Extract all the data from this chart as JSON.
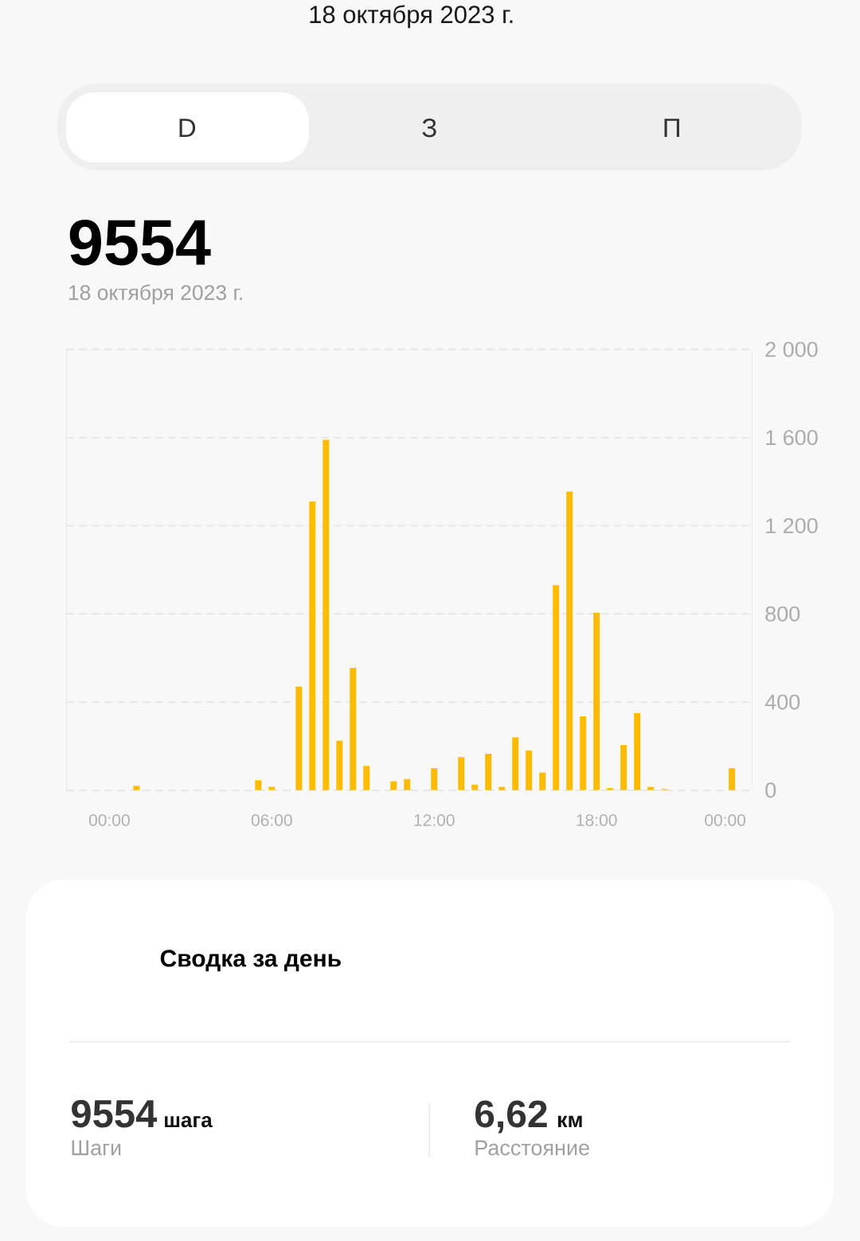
{
  "chart_data": {
    "type": "bar",
    "title": "9554",
    "subtitle": "18 октября 2023 г.",
    "annotations": [
      "18 октября 2023 г.",
      "D",
      "З",
      "П",
      "Сводка за день",
      "9554",
      "шага",
      "Шаги",
      "6,62",
      "км",
      "Расстояние"
    ],
    "x": [
      1,
      5.5,
      6,
      7,
      7.5,
      8,
      8.5,
      9,
      9.5,
      10.5,
      11,
      12,
      13,
      13.5,
      14,
      14.5,
      15,
      15.5,
      16,
      16.5,
      17,
      17.5,
      18,
      18.5,
      19,
      19.5,
      20,
      20.5,
      23
    ],
    "values": [
      20,
      45,
      15,
      470,
      1310,
      1590,
      225,
      555,
      110,
      40,
      50,
      100,
      150,
      25,
      165,
      15,
      240,
      180,
      80,
      930,
      1355,
      335,
      805,
      10,
      205,
      350,
      15,
      5,
      100
    ],
    "color": "#ffbb00",
    "xlim": [
      -1.6,
      23.75
    ],
    "ylim": [
      0,
      2000
    ],
    "xticks": [
      {
        "value": 0,
        "label": "00:00"
      },
      {
        "value": 6,
        "label": "06:00"
      },
      {
        "value": 12,
        "label": "12:00"
      },
      {
        "value": 18,
        "label": "18:00"
      },
      {
        "value": 22.75,
        "label": "00:00"
      }
    ],
    "yticks": [
      0,
      400,
      800,
      {
        "value": 1200,
        "label": "1 200"
      },
      {
        "value": 1600,
        "label": "1 600"
      },
      {
        "value": 2000,
        "label": "2 000"
      }
    ],
    "grid": "y"
  }
}
